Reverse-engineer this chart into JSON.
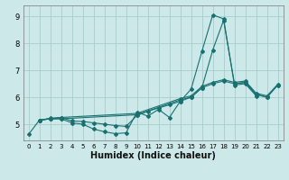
{
  "xlabel": "Humidex (Indice chaleur)",
  "xlim": [
    -0.5,
    23.5
  ],
  "ylim": [
    4.4,
    9.4
  ],
  "yticks": [
    5,
    6,
    7,
    8,
    9
  ],
  "xticks": [
    0,
    1,
    2,
    3,
    4,
    5,
    6,
    7,
    8,
    9,
    10,
    11,
    12,
    13,
    14,
    15,
    16,
    17,
    18,
    19,
    20,
    21,
    22,
    23
  ],
  "bg_color": "#cce8e8",
  "grid_color": "#aacccc",
  "line_color": "#1a7070",
  "series": [
    {
      "x": [
        0,
        1,
        2,
        3,
        4,
        5,
        6,
        7,
        8,
        9,
        10,
        11,
        12,
        13,
        14,
        15,
        16,
        17,
        18,
        19,
        20,
        21
      ],
      "y": [
        4.62,
        5.15,
        5.2,
        5.2,
        5.05,
        5.0,
        4.82,
        4.72,
        4.65,
        4.68,
        5.45,
        5.3,
        5.55,
        5.25,
        5.85,
        6.3,
        7.7,
        9.05,
        8.9,
        6.45,
        6.5,
        6.05
      ]
    },
    {
      "x": [
        1,
        2,
        3,
        10,
        14,
        15,
        16,
        17,
        18,
        19,
        20,
        21,
        22,
        23
      ],
      "y": [
        5.15,
        5.2,
        5.2,
        5.35,
        5.9,
        6.0,
        6.35,
        6.5,
        6.6,
        6.5,
        6.55,
        6.1,
        6.0,
        6.45
      ]
    },
    {
      "x": [
        1,
        2,
        3,
        10,
        14,
        15,
        16,
        17,
        18,
        19,
        20,
        21,
        22,
        23
      ],
      "y": [
        5.15,
        5.22,
        5.25,
        5.4,
        5.95,
        6.05,
        6.4,
        6.55,
        6.65,
        6.55,
        6.6,
        6.15,
        6.05,
        6.48
      ]
    },
    {
      "x": [
        1,
        2,
        3,
        4,
        5,
        6,
        7,
        8,
        9,
        10,
        11,
        12,
        13,
        14,
        15,
        16,
        17,
        18,
        19,
        20,
        21,
        22,
        23
      ],
      "y": [
        5.15,
        5.2,
        5.25,
        5.12,
        5.1,
        5.05,
        5.0,
        4.95,
        4.92,
        5.32,
        5.48,
        5.6,
        5.72,
        5.85,
        6.0,
        6.35,
        7.75,
        8.85,
        6.5,
        6.55,
        6.1,
        6.0,
        6.45
      ]
    }
  ]
}
